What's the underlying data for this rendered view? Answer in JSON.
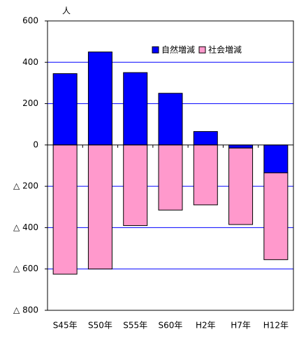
{
  "chart_data": {
    "type": "bar",
    "stacked": true,
    "unit": "人",
    "categories": [
      "S45年",
      "S50年",
      "S55年",
      "S60年",
      "H2年",
      "H7年",
      "H12年"
    ],
    "series": [
      {
        "name": "自然増減",
        "color": "#0000ff",
        "values": [
          345,
          450,
          350,
          250,
          65,
          -15,
          -135
        ]
      },
      {
        "name": "社会増減",
        "color": "#ff99cc",
        "values": [
          -625,
          -600,
          -390,
          -315,
          -290,
          -370,
          -420
        ]
      }
    ],
    "ylim": [
      -800,
      600
    ],
    "yticks": [
      {
        "value": -800,
        "label": "△ 800"
      },
      {
        "value": -600,
        "label": "△ 600"
      },
      {
        "value": -400,
        "label": "△ 400"
      },
      {
        "value": -200,
        "label": "△ 200"
      },
      0,
      200,
      400,
      600
    ],
    "grid": true,
    "grid_color": "#0000ff",
    "legend": "top-right"
  }
}
